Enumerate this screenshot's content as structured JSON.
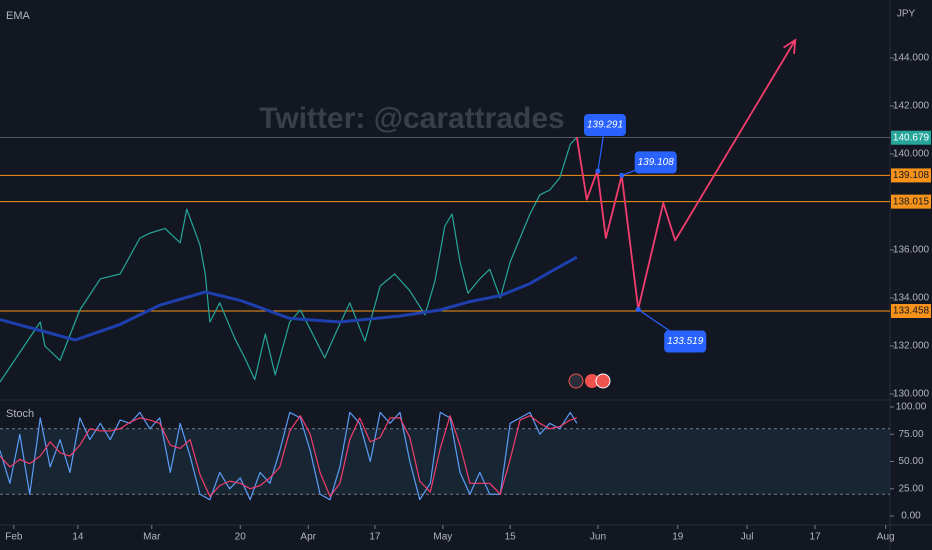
{
  "chart_data": [
    {
      "type": "line",
      "title": "EMA",
      "watermark": "Twitter: @carattrades",
      "axis_unit": "JPY",
      "xlim": [
        0,
        134.85
      ],
      "ylim": [
        129.75,
        146.25
      ],
      "yticks": [
        {
          "value": 130,
          "label": "130.000"
        },
        {
          "value": 132,
          "label": "132.000"
        },
        {
          "value": 134,
          "label": "134.000"
        },
        {
          "value": 136,
          "label": "136.000"
        },
        {
          "value": 140,
          "label": "140.000"
        },
        {
          "value": 142,
          "label": "142.000"
        },
        {
          "value": 144,
          "label": "144.000"
        }
      ],
      "series": [
        {
          "color": "#26a69a",
          "x": [
            0,
            6.1,
            6.8,
            9.1,
            12.1,
            15.2,
            18.2,
            21.2,
            22.7,
            25,
            27.3,
            28.3,
            30.3,
            31.1,
            31.8,
            33.3,
            35.6,
            37.1,
            38.6,
            40.2,
            41.7,
            43.9,
            45.5,
            47,
            49.2,
            50.8,
            53,
            55.3,
            57.6,
            59.8,
            62.1,
            64.4,
            65.9,
            67.4,
            68.5,
            69.7,
            70.9,
            72.7,
            74.2,
            75.8,
            77.3,
            78.8,
            80.3,
            81.8,
            83.3,
            84.8,
            86.4,
            87.4
          ],
          "values": [
            130.5,
            133.0,
            132.0,
            131.4,
            133.5,
            134.8,
            135.0,
            136.5,
            136.7,
            136.9,
            136.3,
            137.7,
            136.2,
            135.0,
            133.0,
            133.8,
            132.3,
            131.5,
            130.6,
            132.5,
            130.8,
            133.0,
            133.5,
            132.7,
            131.5,
            132.5,
            133.8,
            132.2,
            134.5,
            135.0,
            134.3,
            133.3,
            134.7,
            137.0,
            137.5,
            135.5,
            134.2,
            134.8,
            135.2,
            134.0,
            135.5,
            136.5,
            137.5,
            138.3,
            138.5,
            139.0,
            140.4,
            140.7
          ]
        },
        {
          "color": "#1e3fae",
          "x": [
            0,
            11.4,
            18.2,
            24.2,
            31.1,
            36.4,
            43.9,
            51.5,
            60.6,
            66.7,
            71.2,
            75.8,
            80.3,
            84.1,
            87.4
          ],
          "values": [
            133.1,
            132.25,
            132.9,
            133.7,
            134.25,
            133.9,
            133.15,
            133.0,
            133.25,
            133.5,
            133.85,
            134.1,
            134.6,
            135.2,
            135.7
          ]
        }
      ],
      "levels": [
        140.679,
        139.108,
        138.015,
        133.458
      ],
      "level_colors": [
        "#787b86",
        "#f7931a",
        "#f7931a",
        "#f7931a"
      ],
      "projection": {
        "color": "#f23d6d",
        "x": [
          87.4,
          88.9,
          90.5,
          91.8,
          94.2,
          96.7,
          100.5,
          102.3,
          120.5
        ],
        "values": [
          140.7,
          138.1,
          139.3,
          136.5,
          139.1,
          133.54,
          137.96,
          136.4,
          144.75
        ]
      },
      "annotations": [
        {
          "x": 90.6,
          "y": 139.291
        },
        {
          "x": 94.2,
          "y": 139.108
        },
        {
          "x": 96.7,
          "y": 133.519
        }
      ]
    },
    {
      "type": "line",
      "title": "Stoch",
      "xlim": [
        0,
        134.85
      ],
      "ylim": [
        -5,
        105
      ],
      "band": [
        20,
        80
      ],
      "yticks": [
        {
          "value": 0,
          "label": "0.00"
        },
        {
          "value": 25,
          "label": "25.00"
        },
        {
          "value": 50,
          "label": "50.00"
        },
        {
          "value": 75,
          "label": "75.00"
        },
        {
          "value": 100,
          "label": "100.00"
        }
      ],
      "xticks": [
        {
          "value": 2.1,
          "label": "Feb"
        },
        {
          "value": 11.8,
          "label": "14"
        },
        {
          "value": 23,
          "label": "Mar"
        },
        {
          "value": 36.4,
          "label": "20"
        },
        {
          "value": 46.7,
          "label": "Apr"
        },
        {
          "value": 56.8,
          "label": "17"
        },
        {
          "value": 67.1,
          "label": "May"
        },
        {
          "value": 77.3,
          "label": "15"
        },
        {
          "value": 90.6,
          "label": "Jun"
        },
        {
          "value": 102.7,
          "label": "19"
        },
        {
          "value": 113.2,
          "label": "Jul"
        },
        {
          "value": 123.5,
          "label": "17"
        },
        {
          "value": 134.2,
          "label": "Aug"
        }
      ],
      "series": [
        {
          "color": "#5b9cf6",
          "x": [
            0,
            1.5,
            3,
            4.5,
            6.1,
            7.6,
            9.1,
            10.6,
            12.1,
            13.6,
            15.2,
            16.7,
            18.2,
            19.7,
            21.2,
            22.7,
            24.2,
            25.8,
            27.3,
            28.8,
            30.3,
            31.8,
            33.3,
            34.8,
            36.4,
            37.9,
            39.4,
            40.9,
            42.4,
            43.9,
            45.5,
            47,
            48.5,
            50,
            51.5,
            53,
            54.5,
            56.1,
            57.6,
            59.1,
            60.6,
            62.1,
            63.6,
            65.2,
            66.7,
            68.2,
            69.7,
            71.2,
            72.7,
            74.2,
            75.8,
            77.3,
            78.8,
            80.3,
            81.8,
            83.3,
            84.8,
            86.4,
            87.4
          ],
          "values": [
            60,
            30,
            75,
            20,
            90,
            45,
            70,
            40,
            90,
            70,
            85,
            70,
            88,
            85,
            95,
            80,
            90,
            40,
            85,
            55,
            20,
            15,
            40,
            25,
            35,
            15,
            40,
            30,
            60,
            95,
            90,
            60,
            20,
            15,
            45,
            95,
            85,
            50,
            95,
            85,
            95,
            50,
            15,
            30,
            95,
            90,
            40,
            20,
            40,
            20,
            20,
            85,
            90,
            95,
            75,
            85,
            80,
            95,
            85
          ]
        },
        {
          "color": "#f23d6d",
          "x": [
            0,
            1.5,
            3,
            4.5,
            6.1,
            7.6,
            9.1,
            10.6,
            12.1,
            13.6,
            15.2,
            16.7,
            18.2,
            19.7,
            21.2,
            22.7,
            24.2,
            25.8,
            27.3,
            28.8,
            30.3,
            31.8,
            33.3,
            34.8,
            36.4,
            37.9,
            39.4,
            40.9,
            42.4,
            43.9,
            45.5,
            47,
            48.5,
            50,
            51.5,
            53,
            54.5,
            56.1,
            57.6,
            59.1,
            60.6,
            62.1,
            63.6,
            65.2,
            66.7,
            68.2,
            69.7,
            71.2,
            72.7,
            74.2,
            75.8,
            77.3,
            78.8,
            80.3,
            81.8,
            83.3,
            84.8,
            86.4,
            87.4
          ],
          "values": [
            55,
            45,
            52,
            48,
            55,
            68,
            58,
            55,
            65,
            80,
            78,
            78,
            80,
            86,
            90,
            88,
            85,
            65,
            62,
            70,
            38,
            18,
            28,
            32,
            30,
            25,
            28,
            35,
            45,
            78,
            92,
            75,
            40,
            18,
            30,
            70,
            90,
            68,
            72,
            90,
            90,
            72,
            32,
            22,
            62,
            92,
            65,
            30,
            30,
            30,
            20,
            52,
            88,
            92,
            85,
            80,
            82,
            88,
            90
          ]
        }
      ]
    }
  ]
}
